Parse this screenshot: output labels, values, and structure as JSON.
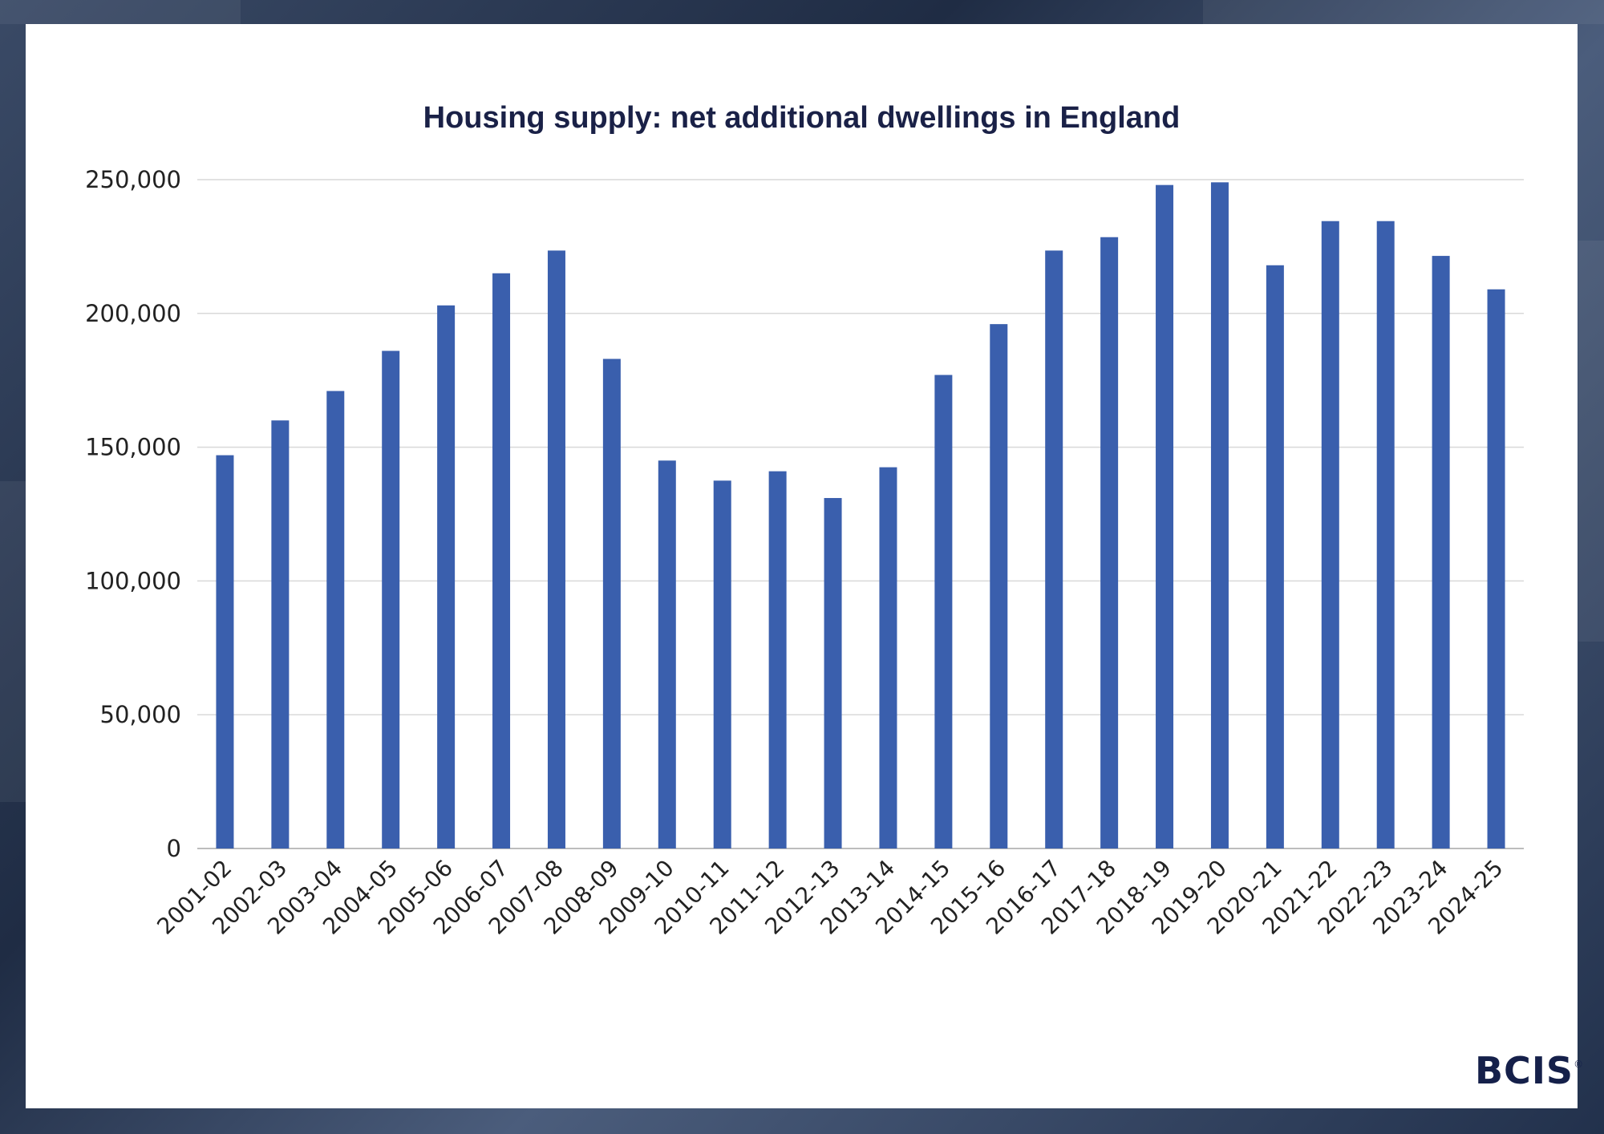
{
  "chart_data": {
    "type": "bar",
    "title": "Housing supply: net additional dwellings in England",
    "xlabel": "",
    "ylabel": "",
    "ylim": [
      0,
      250000
    ],
    "yticks": [
      "0",
      "50,000",
      "100,000",
      "150,000",
      "200,000",
      "250,000"
    ],
    "grid": true,
    "bar_color": "#3a5fad",
    "categories": [
      "2001-02",
      "2002-03",
      "2003-04",
      "2004-05",
      "2005-06",
      "2006-07",
      "2007-08",
      "2008-09",
      "2009-10",
      "2010-11",
      "2011-12",
      "2012-13",
      "2013-14",
      "2014-15",
      "2015-16",
      "2016-17",
      "2017-18",
      "2018-19",
      "2019-20",
      "2020-21",
      "2021-22",
      "2022-23",
      "2023-24",
      "2024-25"
    ],
    "values": [
      147000,
      160000,
      171000,
      186000,
      203000,
      215000,
      223500,
      183000,
      145000,
      137500,
      141000,
      131000,
      142500,
      177000,
      196000,
      223500,
      228500,
      248000,
      249000,
      218000,
      234500,
      234500,
      221500,
      209000
    ]
  },
  "branding": {
    "logo_text": "BCIS",
    "logo_mark": "®"
  }
}
